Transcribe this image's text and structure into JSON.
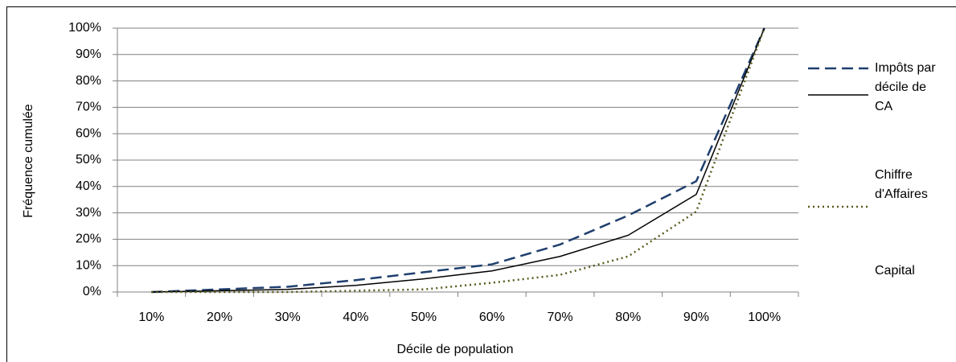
{
  "chart_data": {
    "type": "line",
    "x_label": "Décile de population",
    "y_label": "Fréquence cumulée",
    "categories": [
      "10%",
      "20%",
      "30%",
      "40%",
      "50%",
      "60%",
      "70%",
      "80%",
      "90%",
      "100%"
    ],
    "series": [
      {
        "name": "Impôts par décile de CA",
        "color": "#1f3f6e",
        "dash": "dashed",
        "values": [
          0,
          1,
          2,
          4.5,
          7.5,
          10.5,
          18,
          29,
          42,
          100
        ]
      },
      {
        "name": "Chiffre d'Affaires",
        "color": "#000000",
        "dash": "solid",
        "values": [
          0,
          0.5,
          1,
          2.5,
          5,
          8,
          13.5,
          21.5,
          37,
          100
        ]
      },
      {
        "name": "Capital",
        "color": "#5a5a20",
        "dash": "dotted",
        "values": [
          0,
          0,
          0,
          0.5,
          1,
          3.5,
          6.5,
          13.5,
          30.5,
          100
        ]
      }
    ],
    "ylim": [
      0,
      100
    ],
    "yticks": [
      {
        "value": 0,
        "label": "0%"
      },
      {
        "value": 10,
        "label": "10%"
      },
      {
        "value": 20,
        "label": "20%"
      },
      {
        "value": 30,
        "label": "30%"
      },
      {
        "value": 40,
        "label": "40%"
      },
      {
        "value": 50,
        "label": "50%"
      },
      {
        "value": 60,
        "label": "60%"
      },
      {
        "value": 70,
        "label": "70%"
      },
      {
        "value": 80,
        "label": "80%"
      },
      {
        "value": 90,
        "label": "90%"
      },
      {
        "value": 100,
        "label": "100%"
      }
    ],
    "grid": true,
    "legend": "right"
  }
}
